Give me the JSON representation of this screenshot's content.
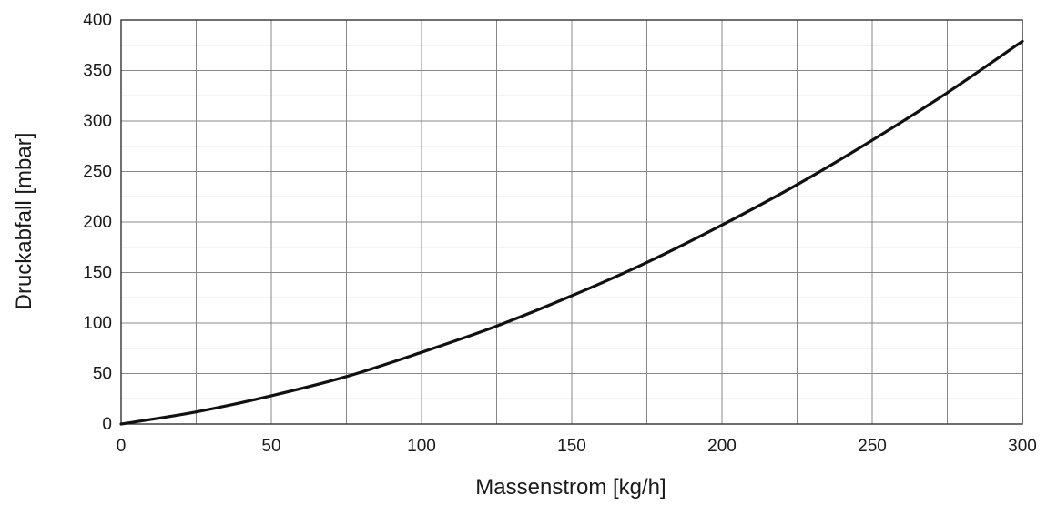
{
  "chart_data": {
    "type": "line",
    "title": "",
    "xlabel": "Massenstrom [kg/h]",
    "ylabel": "Druckabfall [mbar]",
    "xlim": [
      0,
      300
    ],
    "ylim": [
      0,
      400
    ],
    "x_ticks": [
      0,
      50,
      100,
      150,
      200,
      250,
      300
    ],
    "y_ticks": [
      0,
      50,
      100,
      150,
      200,
      250,
      300,
      350,
      400
    ],
    "grid": true,
    "legend": "none",
    "line_color": "#111111",
    "grid_color": "#888888",
    "series": [
      {
        "x": [
          0,
          25,
          50,
          75,
          100,
          125,
          150,
          175,
          200,
          225,
          250,
          275,
          300
        ],
        "y": [
          0,
          12,
          28,
          47,
          71,
          97,
          127,
          160,
          197,
          237,
          281,
          328,
          379
        ]
      }
    ]
  }
}
